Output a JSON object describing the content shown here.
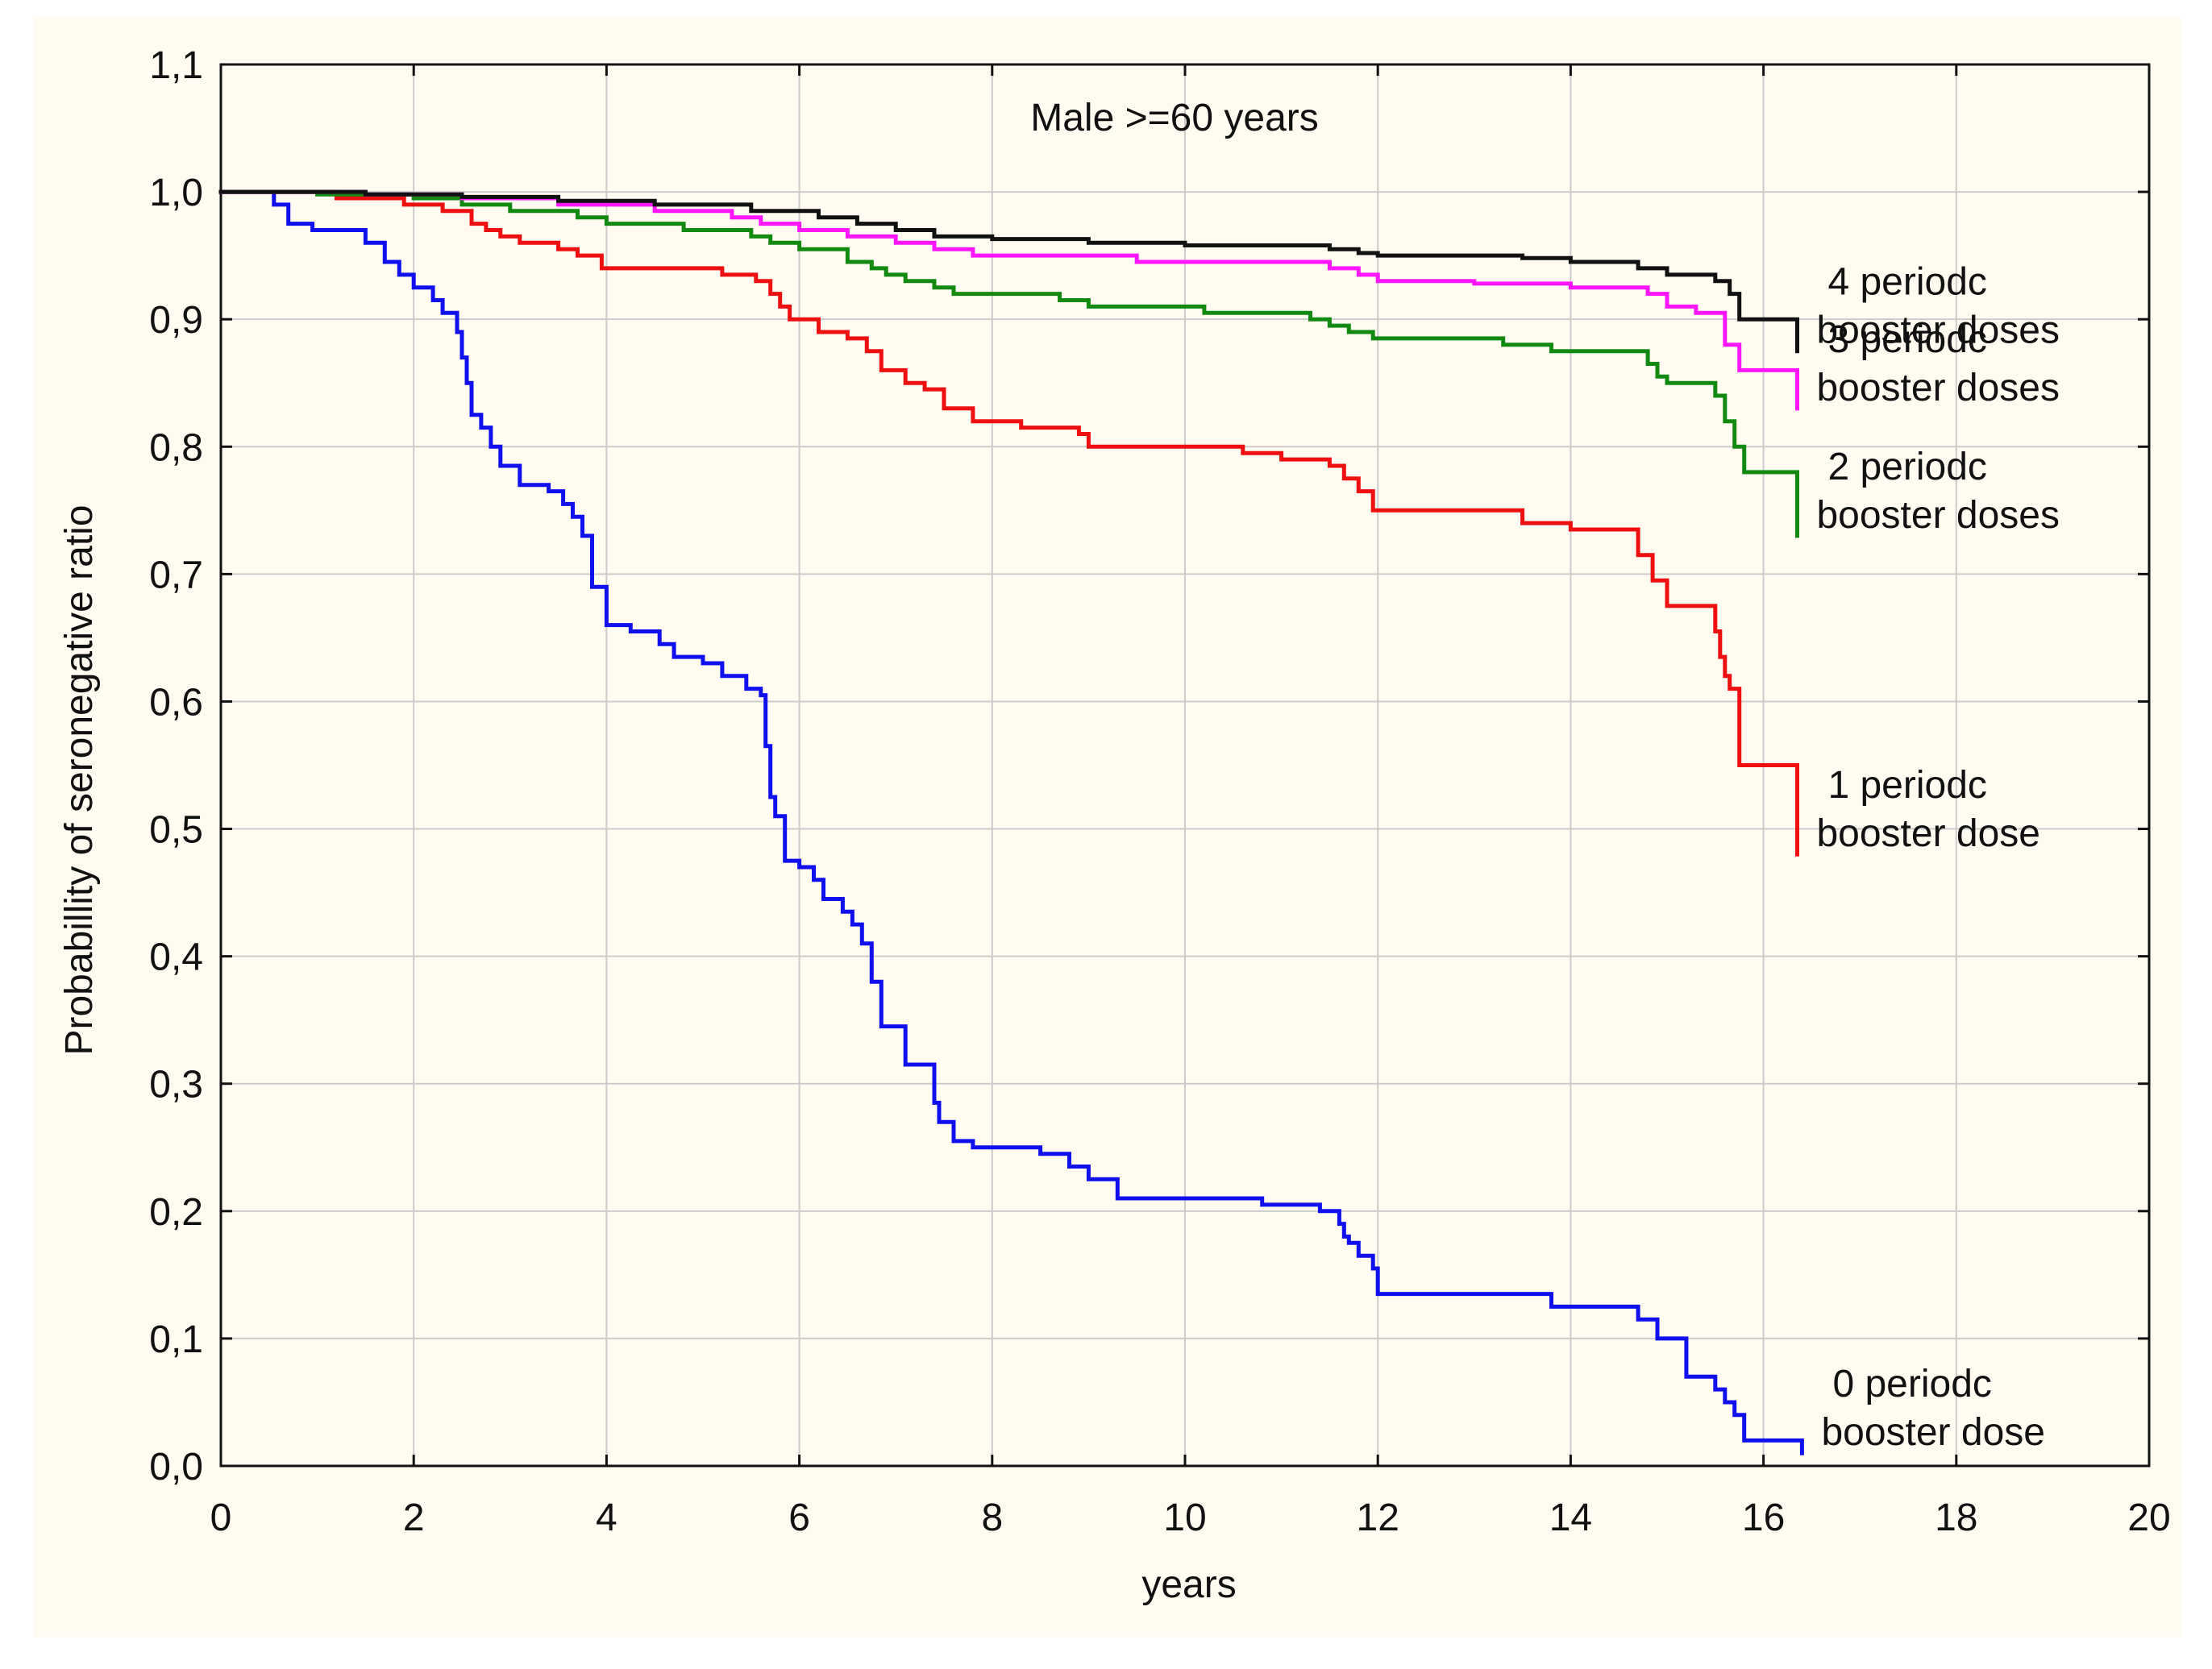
{
  "chart_data": {
    "type": "line",
    "step": true,
    "title": "Male >=60 years",
    "xlabel": "years",
    "ylabel": "Probabillity of seronegative ratio",
    "xlim": [
      0,
      20
    ],
    "ylim": [
      0,
      1.1
    ],
    "xticks": [
      "0",
      "2",
      "4",
      "6",
      "8",
      "10",
      "12",
      "14",
      "16",
      "18",
      "20"
    ],
    "yticks": [
      "0,0",
      "0,1",
      "0,2",
      "0,3",
      "0,4",
      "0,5",
      "0,6",
      "0,7",
      "0,8",
      "0,9",
      "1,0",
      "1,1"
    ],
    "grid": true,
    "series": [
      {
        "name": "0 periodc booster dose",
        "label_lines": [
          "0 periodc",
          "booster dose"
        ],
        "color": "#1010ee",
        "x": [
          0,
          0.55,
          0.7,
          0.95,
          1.5,
          1.7,
          1.85,
          2.0,
          2.2,
          2.3,
          2.45,
          2.5,
          2.55,
          2.6,
          2.7,
          2.8,
          2.9,
          3.1,
          3.4,
          3.55,
          3.65,
          3.75,
          3.85,
          4.0,
          4.25,
          4.55,
          4.7,
          5.0,
          5.2,
          5.45,
          5.6,
          5.65,
          5.7,
          5.75,
          5.85,
          6.0,
          6.15,
          6.25,
          6.45,
          6.55,
          6.65,
          6.75,
          6.85,
          7.1,
          7.4,
          7.45,
          7.6,
          7.8,
          8.3,
          8.5,
          8.8,
          9.0,
          9.3,
          10.5,
          10.8,
          11.4,
          11.6,
          11.65,
          11.7,
          11.8,
          11.95,
          12.0,
          12.2,
          13.3,
          13.8,
          14.7,
          14.9,
          15.2,
          15.5,
          15.6,
          15.7,
          15.8,
          16.3,
          16.4
        ],
        "y": [
          1.0,
          0.99,
          0.975,
          0.97,
          0.96,
          0.945,
          0.935,
          0.925,
          0.915,
          0.905,
          0.89,
          0.87,
          0.85,
          0.825,
          0.815,
          0.8,
          0.785,
          0.77,
          0.765,
          0.755,
          0.745,
          0.73,
          0.69,
          0.66,
          0.655,
          0.645,
          0.635,
          0.63,
          0.62,
          0.61,
          0.605,
          0.565,
          0.525,
          0.51,
          0.475,
          0.47,
          0.46,
          0.445,
          0.435,
          0.425,
          0.41,
          0.38,
          0.345,
          0.315,
          0.285,
          0.27,
          0.255,
          0.25,
          0.25,
          0.245,
          0.235,
          0.225,
          0.21,
          0.21,
          0.205,
          0.2,
          0.19,
          0.18,
          0.175,
          0.165,
          0.155,
          0.135,
          0.135,
          0.135,
          0.125,
          0.115,
          0.1,
          0.07,
          0.06,
          0.05,
          0.04,
          0.02,
          0.02,
          0.01
        ]
      },
      {
        "name": "1 periodc booster dose",
        "label_lines": [
          "1 periodc",
          "booster dose"
        ],
        "color": "#ee1010",
        "x": [
          0,
          1.2,
          1.9,
          2.3,
          2.6,
          2.75,
          2.9,
          3.1,
          3.5,
          3.7,
          3.95,
          4.6,
          5.2,
          5.55,
          5.7,
          5.8,
          5.9,
          6.2,
          6.5,
          6.7,
          6.85,
          7.1,
          7.3,
          7.5,
          7.8,
          8.3,
          8.9,
          9.0,
          9.5,
          10.6,
          11.0,
          11.5,
          11.65,
          11.8,
          11.95,
          13.0,
          13.5,
          14.0,
          14.7,
          14.85,
          15.0,
          15.5,
          15.55,
          15.6,
          15.65,
          15.75,
          16.35
        ],
        "y": [
          1.0,
          0.995,
          0.99,
          0.985,
          0.975,
          0.97,
          0.965,
          0.96,
          0.955,
          0.95,
          0.94,
          0.94,
          0.935,
          0.93,
          0.92,
          0.91,
          0.9,
          0.89,
          0.885,
          0.875,
          0.86,
          0.85,
          0.845,
          0.83,
          0.82,
          0.815,
          0.81,
          0.8,
          0.8,
          0.795,
          0.79,
          0.785,
          0.775,
          0.765,
          0.75,
          0.75,
          0.74,
          0.735,
          0.715,
          0.695,
          0.675,
          0.655,
          0.635,
          0.62,
          0.61,
          0.55,
          0.48
        ]
      },
      {
        "name": "2 periodc booster doses",
        "label_lines": [
          "2 periodc",
          "booster doses"
        ],
        "color": "#128a12",
        "x": [
          0,
          1.0,
          2.0,
          2.5,
          3.0,
          3.7,
          4.0,
          4.8,
          5.5,
          5.7,
          6.0,
          6.5,
          6.75,
          6.9,
          7.1,
          7.4,
          7.6,
          8.0,
          8.7,
          9.0,
          10.2,
          11.3,
          11.5,
          11.7,
          11.95,
          12.0,
          13.3,
          13.8,
          14.8,
          14.9,
          15.0,
          15.5,
          15.6,
          15.7,
          15.8,
          16.35
        ],
        "y": [
          1.0,
          0.998,
          0.995,
          0.99,
          0.985,
          0.98,
          0.975,
          0.97,
          0.965,
          0.96,
          0.955,
          0.945,
          0.94,
          0.935,
          0.93,
          0.925,
          0.92,
          0.92,
          0.915,
          0.91,
          0.905,
          0.9,
          0.895,
          0.89,
          0.885,
          0.885,
          0.88,
          0.875,
          0.865,
          0.855,
          0.85,
          0.84,
          0.82,
          0.8,
          0.78,
          0.73
        ]
      },
      {
        "name": "3 periodc booster doses",
        "label_lines": [
          "3 periodc",
          "booster doses"
        ],
        "color": "#ff16ff",
        "x": [
          0,
          1.5,
          2.5,
          3.5,
          4.5,
          5.3,
          5.6,
          6.0,
          6.5,
          7.0,
          7.4,
          7.8,
          8.3,
          9.5,
          11.0,
          11.5,
          11.8,
          12.0,
          13.0,
          14.0,
          14.8,
          15.0,
          15.3,
          15.6,
          15.75,
          16.35
        ],
        "y": [
          1.0,
          0.998,
          0.995,
          0.99,
          0.985,
          0.98,
          0.975,
          0.97,
          0.965,
          0.96,
          0.955,
          0.95,
          0.95,
          0.945,
          0.945,
          0.94,
          0.935,
          0.93,
          0.928,
          0.925,
          0.92,
          0.91,
          0.905,
          0.88,
          0.86,
          0.83
        ]
      },
      {
        "name": "4 periodc booster doses",
        "label_lines": [
          "4 periodc",
          "booster doses"
        ],
        "color": "#111111",
        "x": [
          0,
          1.5,
          2.5,
          3.5,
          4.5,
          5.5,
          6.2,
          6.6,
          7.0,
          7.4,
          8.0,
          9.0,
          10.0,
          11.5,
          11.8,
          12.0,
          13.5,
          14.0,
          14.7,
          15.0,
          15.5,
          15.65,
          15.75,
          16.35
        ],
        "y": [
          1.0,
          0.998,
          0.996,
          0.993,
          0.99,
          0.985,
          0.98,
          0.975,
          0.97,
          0.965,
          0.963,
          0.96,
          0.958,
          0.955,
          0.952,
          0.95,
          0.948,
          0.945,
          0.94,
          0.935,
          0.93,
          0.92,
          0.9,
          0.875
        ]
      }
    ]
  }
}
